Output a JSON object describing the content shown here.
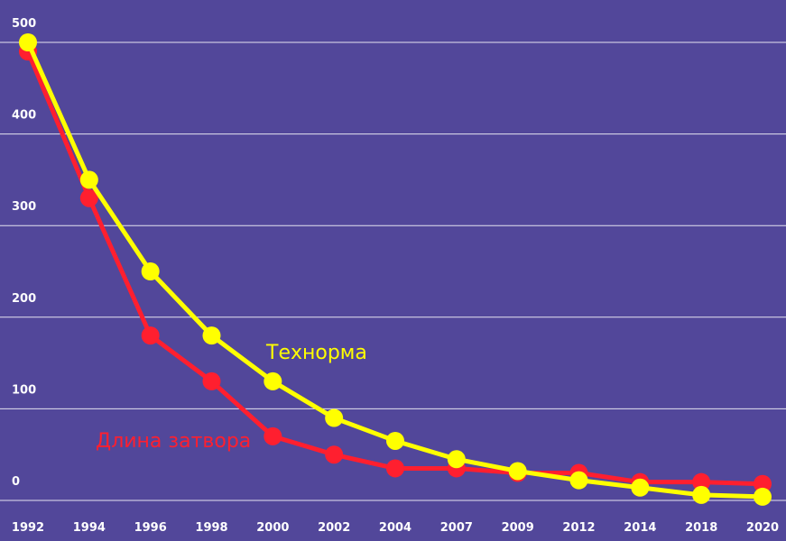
{
  "chart_data": {
    "type": "line",
    "title": "",
    "xlabel": "",
    "ylabel": "",
    "categories": [
      "1992",
      "1994",
      "1996",
      "1998",
      "2000",
      "2002",
      "2004",
      "2007",
      "2009",
      "2012",
      "2014",
      "2018",
      "2020"
    ],
    "ylim": [
      0,
      500
    ],
    "y_ticks": [
      0,
      100,
      200,
      300,
      400,
      500
    ],
    "grid": true,
    "background": "#52479a",
    "series": [
      {
        "name": "Технорма",
        "color": "#ffff00",
        "values": [
          500,
          350,
          250,
          180,
          130,
          90,
          65,
          45,
          32,
          22,
          14,
          6,
          4
        ]
      },
      {
        "name": "Длина затвора",
        "color": "#ff1f2f",
        "values": [
          490,
          330,
          180,
          130,
          70,
          50,
          35,
          35,
          30,
          30,
          20,
          20,
          18
        ]
      }
    ]
  }
}
